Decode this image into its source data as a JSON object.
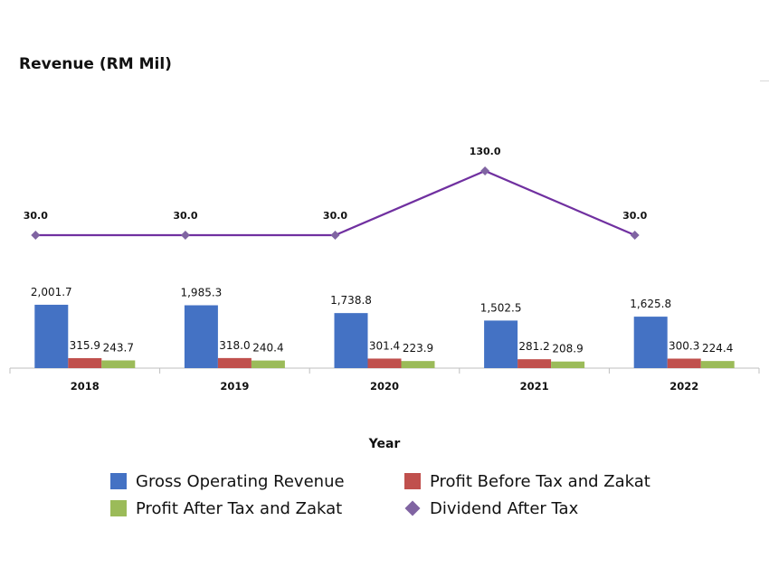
{
  "title": "Revenue (RM Mil)",
  "chart_data": {
    "type": "bar",
    "title": "Revenue (RM Mil)",
    "xlabel": "Year",
    "ylabel": "",
    "categories": [
      "2018",
      "2019",
      "2020",
      "2021",
      "2022"
    ],
    "series": [
      {
        "name": "Gross Operating Revenue",
        "type": "bar",
        "color": "#4472c4",
        "values": [
          2001.7,
          1985.3,
          1738.8,
          1502.5,
          1625.8
        ],
        "labels": [
          "2,001.7",
          "1,985.3",
          "1,738.8",
          "1,502.5",
          "1,625.8"
        ]
      },
      {
        "name": "Profit Before Tax and Zakat",
        "type": "bar",
        "color": "#c0504d",
        "values": [
          315.9,
          318.0,
          301.4,
          281.2,
          300.3
        ],
        "labels": [
          "315.9",
          "318.0",
          "301.4",
          "281.2",
          "300.3"
        ]
      },
      {
        "name": "Profit After Tax and Zakat",
        "type": "bar",
        "color": "#9bbb59",
        "values": [
          243.7,
          240.4,
          223.9,
          208.9,
          224.4
        ],
        "labels": [
          "243.7",
          "240.4",
          "223.9",
          "208.9",
          "224.4"
        ]
      },
      {
        "name": "Dividend After Tax",
        "type": "line",
        "color": "#7030a0",
        "marker": "diamond",
        "values": [
          30.0,
          30.0,
          30.0,
          130.0,
          30.0
        ],
        "labels": [
          "30.0",
          "30.0",
          "30.0",
          "130.0",
          "30.0"
        ]
      }
    ],
    "bar_ylim": [
      0,
      2000
    ],
    "line_ylim": [
      0,
      130
    ],
    "grid": false,
    "legend_position": "bottom"
  },
  "legend": {
    "items": [
      {
        "label": "Gross Operating Revenue",
        "color": "#4472c4",
        "shape": "square"
      },
      {
        "label": "Profit Before Tax and Zakat",
        "color": "#c0504d",
        "shape": "square"
      },
      {
        "label": "Profit After Tax and Zakat",
        "color": "#9bbb59",
        "shape": "square"
      },
      {
        "label": "Dividend After Tax",
        "color": "#8064a2",
        "shape": "diamond"
      }
    ]
  }
}
